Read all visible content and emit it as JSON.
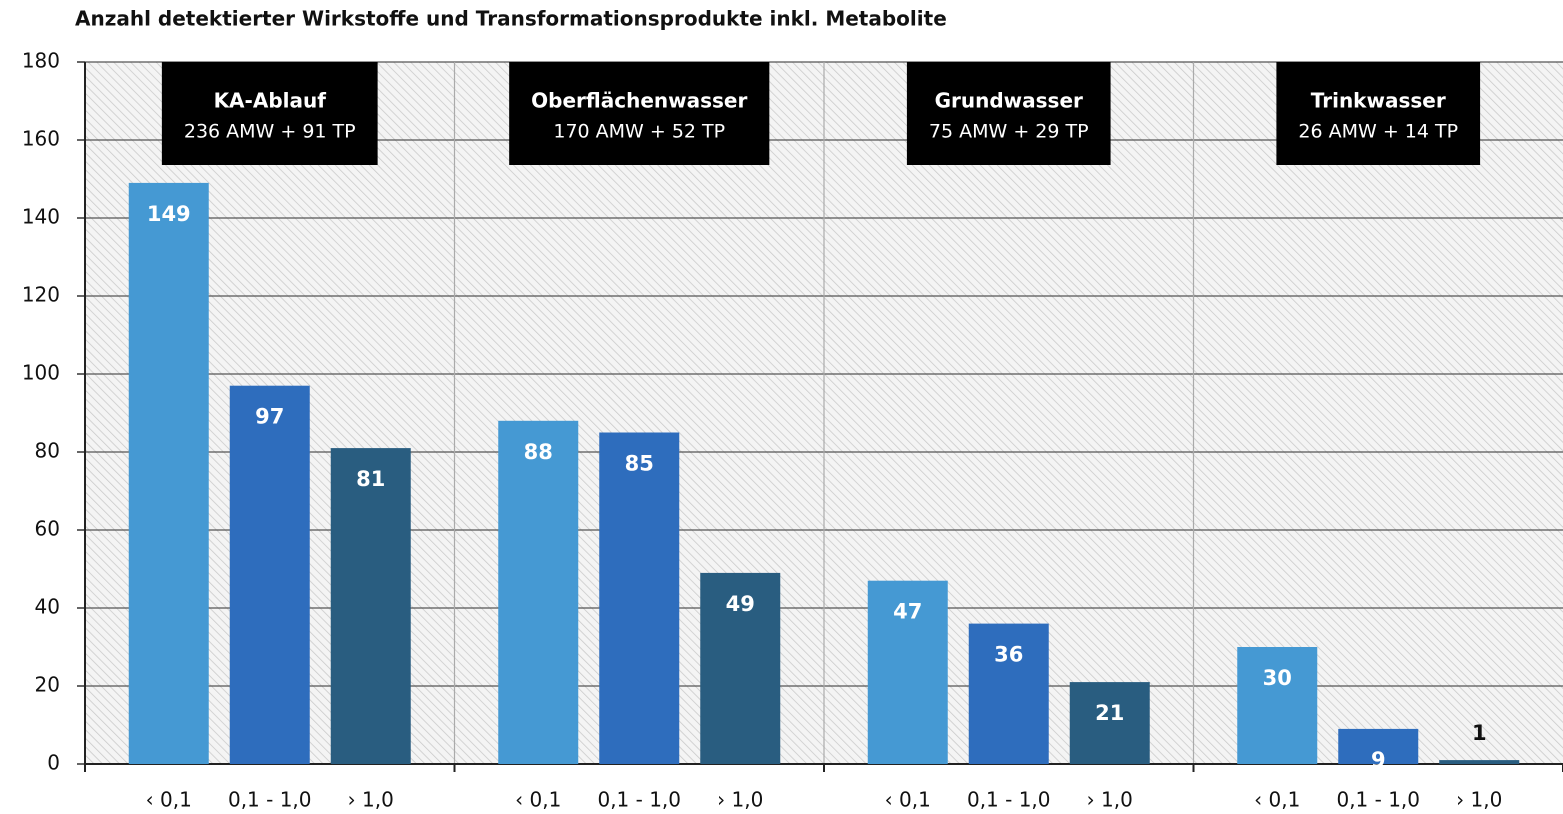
{
  "chart_data": {
    "type": "bar",
    "title": "Anzahl detektierter Wirkstoffe und Transformationsprodukte inkl. Metabolite",
    "categories": [
      "KA-Ablauf",
      "Oberflächenwasser",
      "Grundwasser",
      "Trinkwasser"
    ],
    "category_details": [
      "236 AMW + 91 TP",
      "170 AMW + 52 TP",
      "75 AMW + 29 TP",
      "26 AMW + 14 TP"
    ],
    "series": [
      {
        "name": "‹ 0,1",
        "color": "#4599d3",
        "values": [
          149,
          88,
          47,
          30
        ]
      },
      {
        "name": "0,1 - 1,0",
        "color": "#2e6dbd",
        "values": [
          97,
          85,
          36,
          9
        ]
      },
      {
        "name": "› 1,0",
        "color": "#295d80",
        "values": [
          81,
          49,
          21,
          1
        ]
      }
    ],
    "ylim": [
      0,
      180
    ],
    "yticks": [
      0,
      20,
      40,
      60,
      80,
      100,
      120,
      140,
      160,
      180
    ],
    "grid": true
  }
}
